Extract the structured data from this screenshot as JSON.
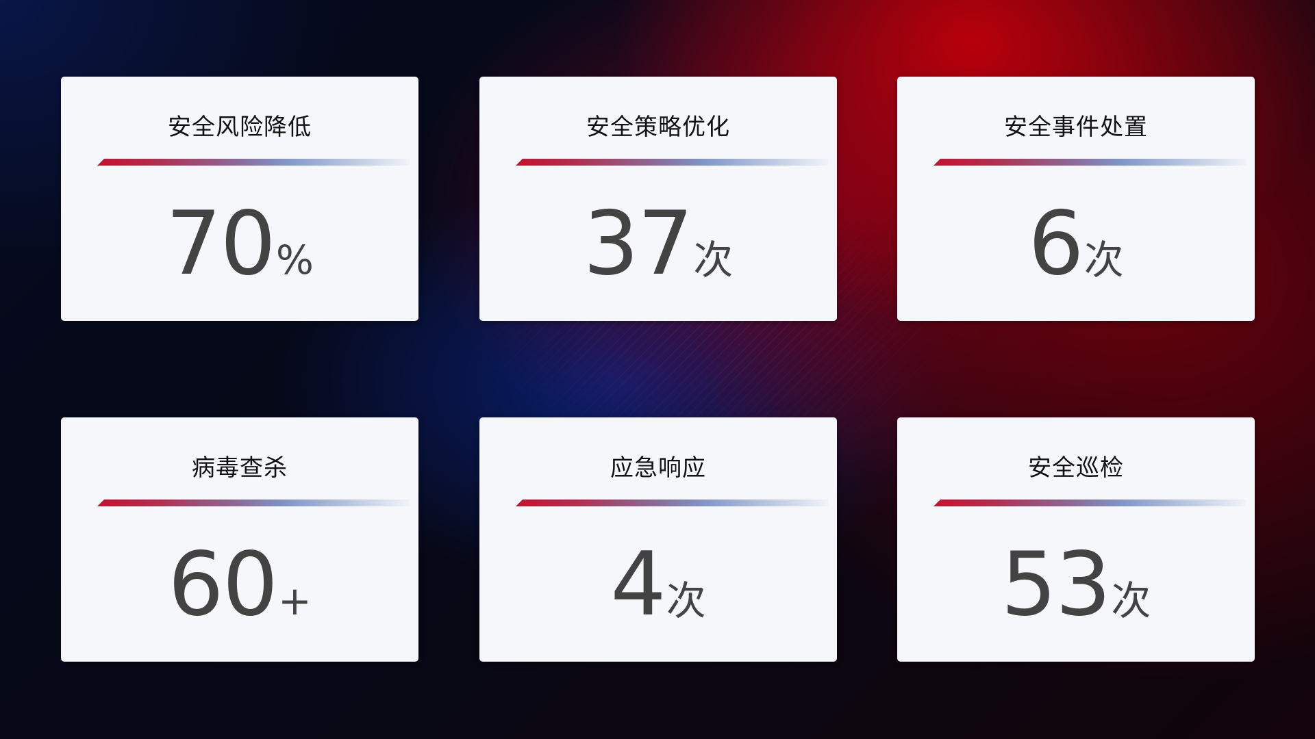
{
  "cards": [
    {
      "title": "安全风险降低",
      "value": "70",
      "unit": "%"
    },
    {
      "title": "安全策略优化",
      "value": "37",
      "unit": "次"
    },
    {
      "title": "安全事件处置",
      "value": "6",
      "unit": "次"
    },
    {
      "title": "病毒查杀",
      "value": "60",
      "unit": "+"
    },
    {
      "title": "应急响应",
      "value": "4",
      "unit": "次"
    },
    {
      "title": "安全巡检",
      "value": "53",
      "unit": "次"
    }
  ],
  "colors": {
    "accent_red": "#c8102e",
    "accent_blue": "#7f95c8",
    "card_bg": "#f6f7fb",
    "value_text": "#434343"
  }
}
